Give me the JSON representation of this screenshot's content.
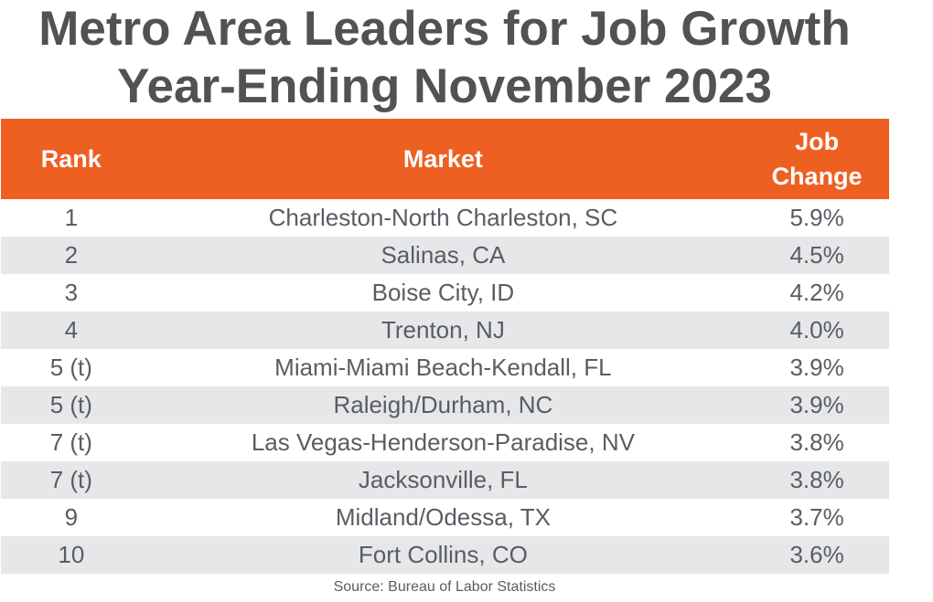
{
  "title_line1": "Metro Area Leaders for Job Growth",
  "title_line2": "Year-Ending November 2023",
  "chart_data": {
    "type": "table",
    "columns": [
      "Rank",
      "Market",
      "Job Change"
    ],
    "header_color": "#EE5F22",
    "stripe_color": "#E6E7E8",
    "rows": [
      {
        "rank": "1",
        "market": "Charleston-North Charleston, SC",
        "change": "5.9%"
      },
      {
        "rank": "2",
        "market": "Salinas, CA",
        "change": "4.5%"
      },
      {
        "rank": "3",
        "market": "Boise City, ID",
        "change": "4.2%"
      },
      {
        "rank": "4",
        "market": "Trenton, NJ",
        "change": "4.0%"
      },
      {
        "rank": "5 (t)",
        "market": "Miami-Miami Beach-Kendall, FL",
        "change": "3.9%"
      },
      {
        "rank": "5 (t)",
        "market": "Raleigh/Durham, NC",
        "change": "3.9%"
      },
      {
        "rank": "7 (t)",
        "market": "Las Vegas-Henderson-Paradise, NV",
        "change": "3.8%"
      },
      {
        "rank": "7 (t)",
        "market": "Jacksonville, FL",
        "change": "3.8%"
      },
      {
        "rank": "9",
        "market": "Midland/Odessa, TX",
        "change": "3.7%"
      },
      {
        "rank": "10",
        "market": "Fort Collins, CO",
        "change": "3.6%"
      }
    ]
  },
  "source": "Source: Bureau of Labor Statistics"
}
